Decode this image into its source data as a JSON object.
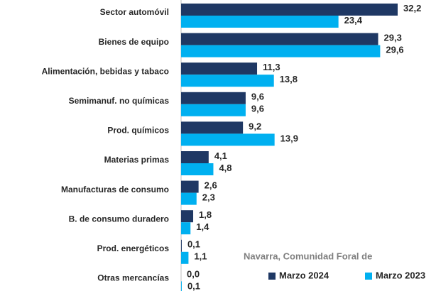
{
  "chart_data": {
    "type": "bar",
    "orientation": "horizontal",
    "categories": [
      "Sector automóvil",
      "Bienes de equipo",
      "Alimentación, bebidas y tabaco",
      "Semimanuf. no químicas",
      "Prod. químicos",
      "Materias primas",
      "Manufacturas de consumo",
      "B. de consumo duradero",
      "Prod. energéticos",
      "Otras mercancías"
    ],
    "series": [
      {
        "name": "Marzo 2024",
        "color": "#1f3864",
        "values": [
          32.2,
          29.3,
          11.3,
          9.6,
          9.2,
          4.1,
          2.6,
          1.8,
          0.1,
          0.0
        ],
        "value_labels": [
          "32,2",
          "29,3",
          "11,3",
          "9,6",
          "9,2",
          "4,1",
          "2,6",
          "1,8",
          "0,1",
          "0,0"
        ]
      },
      {
        "name": "Marzo 2023",
        "color": "#00b0f0",
        "values": [
          23.4,
          29.6,
          13.8,
          9.6,
          13.9,
          4.8,
          2.3,
          1.4,
          1.1,
          0.1
        ],
        "value_labels": [
          "23,4",
          "29,6",
          "13,8",
          "9,6",
          "13,9",
          "4,8",
          "2,3",
          "1,4",
          "1,1",
          "0,1"
        ]
      }
    ],
    "annotation": "Navarra, Comunidad Foral de",
    "legend": "bottom-right"
  }
}
